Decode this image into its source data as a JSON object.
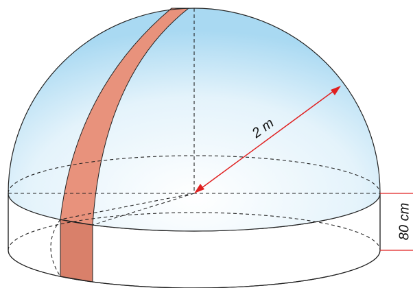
{
  "labels": {
    "radius": "2 m",
    "height": "80 cm"
  }
}
